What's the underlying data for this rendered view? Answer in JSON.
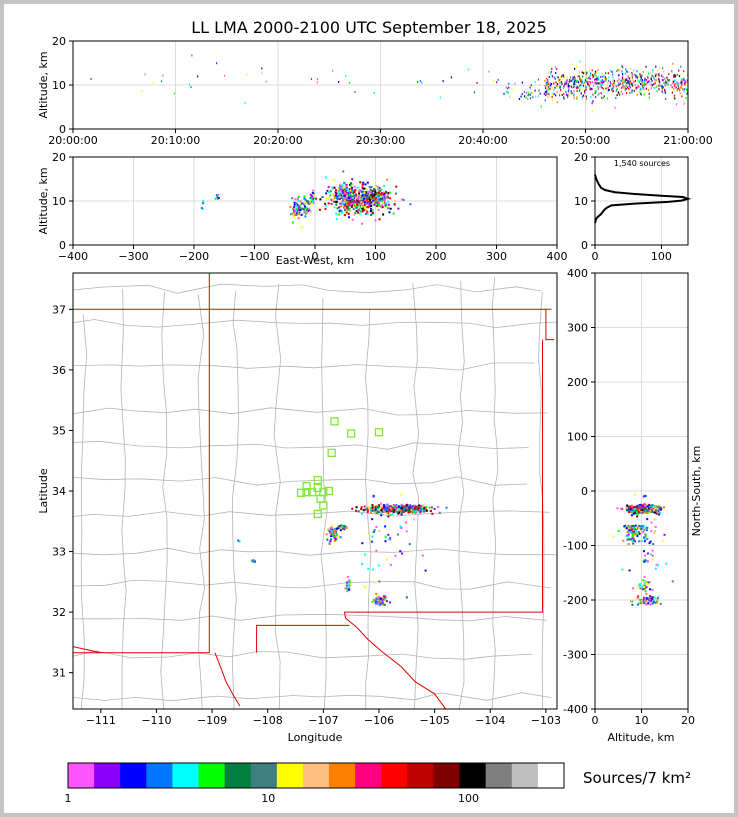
{
  "chart_data": {
    "type": "scatter",
    "title": "LL LMA 2000-2100 UTC September 18, 2025",
    "source_count_label": "1,540 sources",
    "colors": {
      "state_border": "#e00000",
      "county_border": "#b4b4b4",
      "station": "#7ee83a"
    },
    "time_altitude": {
      "ylabel": "Altitude, km",
      "xticks": [
        "20:00:00",
        "20:10:00",
        "20:20:00",
        "20:30:00",
        "20:40:00",
        "20:50:00",
        "21:00:00"
      ],
      "xlim_minutes": [
        0,
        60
      ],
      "ylim": [
        0,
        20
      ],
      "yticks": [
        0,
        10,
        20
      ]
    },
    "ew_altitude": {
      "xlabel": "East-West, km",
      "ylabel": "Altitude, km",
      "xlim": [
        -400,
        400
      ],
      "xticks": [
        -400,
        -300,
        -200,
        -100,
        0,
        100,
        200,
        300,
        400
      ],
      "ylim": [
        0,
        20
      ],
      "yticks": [
        0,
        10,
        20
      ]
    },
    "altitude_histogram": {
      "xlim": [
        0,
        140
      ],
      "xticks": [
        0,
        100
      ],
      "ylim": [
        0,
        20
      ],
      "yticks": [
        0,
        10,
        20
      ],
      "profile": [
        [
          0,
          5
        ],
        [
          2,
          6
        ],
        [
          5,
          6.5
        ],
        [
          9,
          7
        ],
        [
          14,
          8
        ],
        [
          18,
          8.5
        ],
        [
          25,
          9
        ],
        [
          60,
          9.4
        ],
        [
          110,
          9.8
        ],
        [
          130,
          10.1
        ],
        [
          140,
          10.5
        ],
        [
          132,
          10.9
        ],
        [
          100,
          11.2
        ],
        [
          60,
          11.6
        ],
        [
          30,
          12
        ],
        [
          15,
          12.5
        ],
        [
          9,
          13
        ],
        [
          5,
          14
        ],
        [
          2,
          15
        ],
        [
          0,
          16
        ]
      ]
    },
    "map": {
      "xlabel": "Longitude",
      "ylabel": "Latitude",
      "xlim": [
        -111.5,
        -102.8
      ],
      "ylim": [
        30.4,
        37.6
      ],
      "xticks": [
        -111,
        -110,
        -109,
        -108,
        -107,
        -106,
        -105,
        -104,
        -103
      ],
      "yticks": [
        31,
        32,
        33,
        34,
        35,
        36,
        37
      ],
      "stations": [
        [
          -106.8,
          35.15
        ],
        [
          -106.5,
          34.95
        ],
        [
          -106.0,
          34.97
        ],
        [
          -106.85,
          34.63
        ],
        [
          -107.1,
          34.18
        ],
        [
          -107.3,
          34.08
        ],
        [
          -107.1,
          34.05
        ],
        [
          -107.4,
          33.97
        ],
        [
          -107.3,
          33.98
        ],
        [
          -107.2,
          33.98
        ],
        [
          -107.0,
          33.98
        ],
        [
          -106.9,
          34.0
        ],
        [
          -107.05,
          33.87
        ],
        [
          -107.0,
          33.76
        ],
        [
          -107.1,
          33.62
        ]
      ]
    },
    "ns_altitude": {
      "xlabel": "Altitude, km",
      "ylabel": "North-South, km",
      "xlim": [
        0,
        20
      ],
      "xticks": [
        0,
        10,
        20
      ],
      "ylim": [
        -400,
        400
      ],
      "yticks": [
        -400,
        -300,
        -200,
        -100,
        0,
        100,
        200,
        300,
        400
      ]
    },
    "colorbar": {
      "label": "Sources/7 km²",
      "ticks": [
        "1",
        "10",
        "100"
      ],
      "colors": [
        "#ff55ff",
        "#8b00ff",
        "#0000ff",
        "#0077ff",
        "#00ffff",
        "#00ff00",
        "#007f3f",
        "#3f7f7f",
        "#ffff00",
        "#ffbf7f",
        "#ff7f00",
        "#ff007f",
        "#ff0000",
        "#bf0000",
        "#7f0000",
        "#000000",
        "#7f7f7f",
        "#bfbfbf",
        "#ffffff"
      ]
    },
    "clusters": [
      {
        "lon": -105.67,
        "lat": 33.7,
        "alt": 10.4,
        "spread_lon": 0.28,
        "spread_lat": 0.03,
        "spread_alt": 1.6,
        "sources": 520,
        "tmin": 46,
        "tmax": 60
      },
      {
        "lon": -106.82,
        "lat": 33.3,
        "alt": 8.5,
        "spread_lon": 0.05,
        "spread_lat": 0.06,
        "spread_alt": 1.2,
        "sources": 60,
        "tmin": 44,
        "tmax": 52
      },
      {
        "lon": -106.68,
        "lat": 33.4,
        "alt": 8.3,
        "spread_lon": 0.04,
        "spread_lat": 0.02,
        "spread_alt": 1.0,
        "sources": 40,
        "tmin": 42,
        "tmax": 50
      },
      {
        "lon": -105.98,
        "lat": 32.18,
        "alt": 11.2,
        "spread_lon": 0.06,
        "spread_lat": 0.05,
        "spread_alt": 1.3,
        "sources": 70,
        "tmin": 50,
        "tmax": 60
      },
      {
        "lon": -106.55,
        "lat": 32.45,
        "alt": 10.6,
        "spread_lon": 0.02,
        "spread_lat": 0.05,
        "spread_alt": 0.8,
        "sources": 25,
        "tmin": 48,
        "tmax": 58
      },
      {
        "lon": -108.25,
        "lat": 32.84,
        "alt": 10.6,
        "spread_lon": 0.02,
        "spread_lat": 0.01,
        "spread_alt": 0.4,
        "sources": 6,
        "tmin": 20,
        "tmax": 40
      },
      {
        "lon": -108.5,
        "lat": 33.18,
        "alt": 9.0,
        "spread_lon": 0.02,
        "spread_lat": 0.01,
        "spread_alt": 0.5,
        "sources": 4,
        "tmin": 5,
        "tmax": 30
      },
      {
        "lon": -106.1,
        "lat": 33.92,
        "alt": 11,
        "spread_lon": 0.01,
        "spread_lat": 0.01,
        "spread_alt": 0.4,
        "sources": 3,
        "tmin": 30,
        "tmax": 40
      },
      {
        "lon": -105.6,
        "lat": 33.42,
        "alt": 10.5,
        "spread_lon": 0.02,
        "spread_lat": 0.02,
        "spread_alt": 0.5,
        "sources": 3,
        "tmin": 40,
        "tmax": 55
      },
      {
        "lon": -105.8,
        "lat": 33.2,
        "alt": 11,
        "spread_lon": 0.02,
        "spread_lat": 0.02,
        "spread_alt": 0.5,
        "sources": 3,
        "tmin": 40,
        "tmax": 55
      },
      {
        "lon": -106.0,
        "lat": 33.1,
        "alt": 11,
        "spread_lon": 0.3,
        "spread_lat": 0.4,
        "spread_alt": 2.0,
        "sources": 40,
        "tmin": 0,
        "tmax": 60
      }
    ]
  }
}
